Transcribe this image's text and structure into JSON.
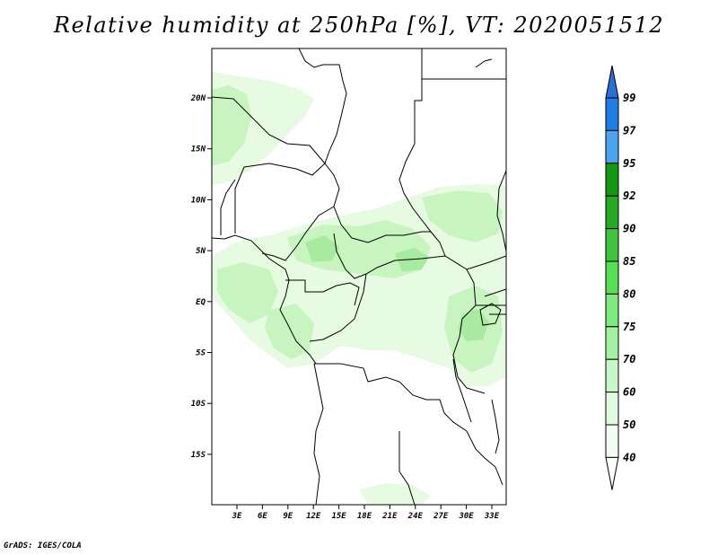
{
  "header": {
    "title": "Relative humidity at 250hPa [%], VT: 2020051512"
  },
  "footer": {
    "credit": "GrADS: IGES/COLA"
  },
  "map": {
    "lat_labels": [
      "20N",
      "15N",
      "10N",
      "5N",
      "EQ",
      "5S",
      "10S",
      "15S"
    ],
    "lon_labels": [
      "3E",
      "6E",
      "9E",
      "12E",
      "15E",
      "18E",
      "21E",
      "24E",
      "27E",
      "30E",
      "33E"
    ]
  },
  "colorbar": {
    "labels": [
      "99",
      "97",
      "95",
      "92",
      "90",
      "85",
      "80",
      "75",
      "70",
      "60",
      "50",
      "40"
    ],
    "colors": [
      "#2a6fd8",
      "#1f7de6",
      "#4aa4f0",
      "#119a11",
      "#26aa26",
      "#3fc43f",
      "#55e055",
      "#7eeb7e",
      "#a3f2a3",
      "#c6f7c6",
      "#e1fbe1",
      "#f3fdf3"
    ]
  },
  "fill_colors": {
    "light": "#e7fbe2",
    "mid": "#c8f4c0",
    "dark": "#a8eba0"
  },
  "chart_data": {
    "type": "map",
    "title": "Relative humidity at 250hPa [%], VT: 2020051512",
    "variable": "Relative humidity at 250hPa",
    "units": "%",
    "valid_time": "2020051512",
    "lon_ticks": [
      "3E",
      "6E",
      "9E",
      "12E",
      "15E",
      "18E",
      "21E",
      "24E",
      "27E",
      "30E",
      "33E"
    ],
    "lat_ticks": [
      "20N",
      "15N",
      "10N",
      "5N",
      "EQ",
      "5S",
      "10S",
      "15S"
    ],
    "colorbar_levels": [
      40,
      50,
      60,
      70,
      75,
      80,
      85,
      90,
      92,
      95,
      97,
      99
    ]
  }
}
